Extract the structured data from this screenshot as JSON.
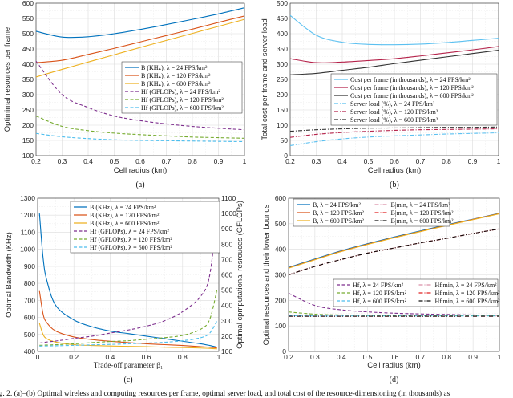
{
  "caption": "ig. 2. (a)–(b) Optimal wireless and computing resources per frame, optimal server load, and total cost of the resource-dimensioning (in thousands) as",
  "chart_data": [
    {
      "panel_label": "(a)",
      "type": "line",
      "xlabel": "Cell radius (km)",
      "ylabel": "Optimimal resources per frame",
      "xlim": [
        0.2,
        1
      ],
      "ylim": [
        100,
        600
      ],
      "xticks": [
        0.2,
        0.3,
        0.4,
        0.5,
        0.6,
        0.7,
        0.8,
        0.9,
        1
      ],
      "yticks": [
        100,
        150,
        200,
        250,
        300,
        350,
        400,
        450,
        500,
        550,
        600
      ],
      "grid": true,
      "legend_placement": "right",
      "x": [
        0.2,
        0.3,
        0.4,
        0.5,
        0.6,
        0.7,
        0.8,
        0.9,
        1.0
      ],
      "series": [
        {
          "name": "B (KHz), λ = 24 FPS/km²",
          "color": "#0072BD",
          "style": "solid",
          "values": [
            508,
            489,
            490,
            500,
            514,
            530,
            547,
            565,
            585
          ]
        },
        {
          "name": "B (KHz), λ = 120 FPS/km²",
          "color": "#D95319",
          "style": "solid",
          "values": [
            405,
            413,
            432,
            452,
            473,
            494,
            515,
            537,
            558
          ]
        },
        {
          "name": "B (KHz), λ = 600 FPS/km²",
          "color": "#EDB120",
          "style": "solid",
          "values": [
            358,
            383,
            407,
            431,
            455,
            478,
            501,
            524,
            547
          ]
        },
        {
          "name": "Hf (GFLOPs), λ = 24 FPS/km²",
          "color": "#7E2F8E",
          "style": "dashed",
          "values": [
            410,
            300,
            258,
            230,
            215,
            204,
            196,
            190,
            185
          ]
        },
        {
          "name": "Hf (GFLOPs), λ = 120 FPS/km²",
          "color": "#77AC30",
          "style": "dashed",
          "values": [
            230,
            196,
            182,
            174,
            169,
            165,
            161,
            159,
            157
          ]
        },
        {
          "name": "Hf (GFLOPs), λ = 600 FPS/km²",
          "color": "#4DBEEE",
          "style": "dashed",
          "values": [
            173,
            162,
            156,
            152,
            150,
            149,
            148,
            147,
            146
          ]
        }
      ]
    },
    {
      "panel_label": "(b)",
      "type": "line",
      "xlabel": "Cell radius (km)",
      "ylabel": "Total cost per frame and server load",
      "xlim": [
        0.2,
        1
      ],
      "ylim": [
        0,
        500
      ],
      "xticks": [
        0.2,
        0.3,
        0.4,
        0.5,
        0.6,
        0.7,
        0.8,
        0.9,
        1
      ],
      "yticks": [
        0,
        50,
        100,
        150,
        200,
        250,
        300,
        350,
        400,
        450,
        500
      ],
      "grid": true,
      "legend_placement": "right",
      "x": [
        0.2,
        0.3,
        0.4,
        0.5,
        0.6,
        0.7,
        0.8,
        0.9,
        1.0
      ],
      "series": [
        {
          "name": "Cost per frame (in thousands), λ = 24 FPS/km²",
          "color": "#5BC0F0",
          "style": "solid",
          "values": [
            460,
            395,
            372,
            365,
            364,
            366,
            371,
            378,
            385
          ]
        },
        {
          "name": "Cost per frame (in thousands), λ = 120 FPS/km²",
          "color": "#B5224A",
          "style": "solid",
          "values": [
            318,
            305,
            307,
            312,
            318,
            327,
            337,
            347,
            358
          ]
        },
        {
          "name": "Cost per frame (in thousands), λ = 600 FPS/km²",
          "color": "#333333",
          "style": "solid",
          "values": [
            265,
            270,
            280,
            290,
            302,
            313,
            324,
            335,
            346
          ]
        },
        {
          "name": "Server load (%), λ = 24 FPS/km²",
          "color": "#5BC0F0",
          "style": "dashdot",
          "values": [
            33,
            46,
            55,
            61,
            65,
            68,
            71,
            73,
            75
          ]
        },
        {
          "name": "Server load (%), λ = 120 FPS/km²",
          "color": "#B5224A",
          "style": "dashdot",
          "values": [
            60,
            70,
            76,
            80,
            83,
            85,
            86,
            87,
            88
          ]
        },
        {
          "name": "Server load (%), λ = 600 FPS/km²",
          "color": "#333333",
          "style": "dashdot",
          "values": [
            80,
            85,
            88,
            90,
            91,
            92,
            93,
            93,
            94
          ]
        }
      ]
    },
    {
      "panel_label": "(c)",
      "type": "line",
      "xlabel": "Trade-off parameter β₁",
      "ylabel": "Optimal Bandwidth (KHz)",
      "y2label": "Optimal cpmputational resrouces (GFLOPs)",
      "xlim": [
        0,
        1
      ],
      "ylim": [
        400,
        1300
      ],
      "y2lim": [
        100,
        1100
      ],
      "xticks": [
        0,
        0.2,
        0.4,
        0.6,
        0.8,
        1
      ],
      "yticks": [
        400,
        500,
        600,
        700,
        800,
        900,
        1000,
        1100,
        1200,
        1300
      ],
      "y2ticks": [
        100,
        200,
        300,
        400,
        500,
        600,
        700,
        800,
        900,
        1000,
        1100
      ],
      "grid": true,
      "legend_placement": "top",
      "x": [
        0.01,
        0.03,
        0.05,
        0.1,
        0.2,
        0.3,
        0.4,
        0.5,
        0.6,
        0.7,
        0.8,
        0.9,
        0.95,
        0.99
      ],
      "series": [
        {
          "name": "B (KHz), λ = 24 FPS/km²",
          "color": "#0072BD",
          "style": "solid",
          "axis": "left",
          "values": [
            1210,
            950,
            820,
            670,
            585,
            545,
            520,
            505,
            490,
            475,
            460,
            445,
            435,
            425
          ]
        },
        {
          "name": "B (KHz), λ = 120 FPS/km²",
          "color": "#D95319",
          "style": "solid",
          "axis": "left",
          "values": [
            755,
            620,
            570,
            520,
            485,
            470,
            460,
            452,
            445,
            440,
            435,
            428,
            425,
            420
          ]
        },
        {
          "name": "B (KHz), λ = 600 FPS/km²",
          "color": "#EDB120",
          "style": "solid",
          "axis": "left",
          "values": [
            565,
            500,
            475,
            455,
            440,
            435,
            432,
            430,
            428,
            425,
            423,
            420,
            418,
            415
          ]
        },
        {
          "name": "Hf (GFLOPs), λ = 24 FPS/km²",
          "color": "#7E2F8E",
          "style": "dashed",
          "axis": "right",
          "values": [
            155,
            158,
            162,
            168,
            185,
            200,
            220,
            240,
            265,
            300,
            360,
            460,
            600,
            1010
          ]
        },
        {
          "name": "Hf (GFLOPs), λ = 120 FPS/km²",
          "color": "#77AC30",
          "style": "dashed",
          "axis": "right",
          "values": [
            140,
            141,
            142,
            144,
            150,
            158,
            165,
            170,
            180,
            190,
            205,
            245,
            310,
            505
          ]
        },
        {
          "name": "Hf (GFLOPs), λ = 600 FPS/km²",
          "color": "#4DBEEE",
          "style": "dashed",
          "axis": "right",
          "values": [
            135,
            136,
            136,
            137,
            140,
            143,
            146,
            150,
            155,
            160,
            170,
            190,
            220,
            300
          ]
        }
      ]
    },
    {
      "panel_label": "(d)",
      "type": "line",
      "xlabel": "Cell radius (km)",
      "ylabel": "Optimal resources and their lower bounds",
      "xlim": [
        0.2,
        1
      ],
      "ylim": [
        0,
        600
      ],
      "xticks": [
        0.2,
        0.3,
        0.4,
        0.5,
        0.6,
        0.7,
        0.8,
        0.9,
        1
      ],
      "yticks": [
        0,
        100,
        200,
        300,
        400,
        500,
        600
      ],
      "grid": true,
      "legend_placement": "top and middle",
      "x": [
        0.2,
        0.3,
        0.4,
        0.5,
        0.6,
        0.7,
        0.8,
        0.9,
        1.0
      ],
      "series": [
        {
          "name": "B, λ = 24 FPS/km²",
          "color": "#0072BD",
          "style": "solid",
          "values": [
            329,
            362,
            394,
            422,
            448,
            472,
            496,
            518,
            541
          ]
        },
        {
          "name": "B, λ = 120 FPS/km²",
          "color": "#D95319",
          "style": "solid",
          "values": [
            327,
            360,
            392,
            420,
            446,
            470,
            494,
            517,
            540
          ]
        },
        {
          "name": "B, λ = 600 FPS/km²",
          "color": "#EDB120",
          "style": "solid",
          "values": [
            326,
            359,
            391,
            419,
            445,
            469,
            493,
            516,
            539
          ]
        },
        {
          "name": "B|min, λ = 24 FPS/km²",
          "color": "#D98FA8",
          "style": "dashdot",
          "values": [
            300,
            333,
            360,
            385,
            405,
            425,
            443,
            462,
            480
          ]
        },
        {
          "name": "B|min, λ = 120 FPS/km²",
          "color": "#E02020",
          "style": "dashdot",
          "values": [
            300,
            333,
            360,
            385,
            405,
            425,
            443,
            462,
            480
          ]
        },
        {
          "name": "B|min, λ = 600 FPS/km²",
          "color": "#111111",
          "style": "dashdot",
          "values": [
            300,
            333,
            360,
            385,
            405,
            425,
            443,
            462,
            480
          ]
        },
        {
          "name": "Hf, λ = 24 FPS/km²",
          "color": "#7E2F8E",
          "style": "dashed",
          "values": [
            228,
            180,
            163,
            155,
            150,
            147,
            145,
            143,
            142
          ]
        },
        {
          "name": "Hf, λ = 120 FPS/km²",
          "color": "#77AC30",
          "style": "dashed",
          "values": [
            155,
            146,
            143,
            142,
            141,
            141,
            140,
            140,
            140
          ]
        },
        {
          "name": "Hf, λ = 600 FPS/km²",
          "color": "#4DBEEE",
          "style": "dashed",
          "values": [
            140,
            139,
            139,
            139,
            139,
            139,
            139,
            139,
            139
          ]
        },
        {
          "name": "Hf|min, λ = 24 FPS/km²",
          "color": "#D98FA8",
          "style": "dashdot",
          "values": [
            138,
            138,
            138,
            138,
            138,
            138,
            138,
            138,
            138
          ]
        },
        {
          "name": "Hf|min, λ = 120 FPS/km²",
          "color": "#E02020",
          "style": "dashdot",
          "values": [
            138,
            138,
            138,
            138,
            138,
            138,
            138,
            138,
            138
          ]
        },
        {
          "name": "Hf|min, λ = 600 FPS/km²",
          "color": "#111111",
          "style": "dashdot",
          "values": [
            138,
            138,
            138,
            138,
            138,
            138,
            138,
            138,
            138
          ]
        }
      ]
    }
  ]
}
